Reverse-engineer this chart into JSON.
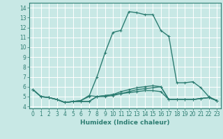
{
  "xlabel": "Humidex (Indice chaleur)",
  "xlim": [
    -0.5,
    23.5
  ],
  "ylim": [
    3.8,
    14.5
  ],
  "xticks": [
    0,
    1,
    2,
    3,
    4,
    5,
    6,
    7,
    8,
    9,
    10,
    11,
    12,
    13,
    14,
    15,
    16,
    17,
    18,
    19,
    20,
    21,
    22,
    23
  ],
  "yticks": [
    4,
    5,
    6,
    7,
    8,
    9,
    10,
    11,
    12,
    13,
    14
  ],
  "bg_color": "#c8e8e5",
  "line_color": "#2d7d72",
  "grid_color": "#ffffff",
  "lines": [
    {
      "x": [
        0,
        1,
        2,
        3,
        4,
        5,
        6,
        7,
        8,
        9,
        10,
        11,
        12,
        13,
        14,
        15,
        16,
        17,
        18,
        19,
        20,
        21,
        22,
        23
      ],
      "y": [
        5.7,
        5.0,
        4.9,
        4.7,
        4.4,
        4.5,
        4.6,
        5.0,
        7.0,
        9.4,
        11.5,
        11.7,
        13.6,
        13.5,
        13.3,
        13.3,
        11.7,
        11.1,
        6.4,
        6.4,
        6.5,
        5.9,
        5.0,
        4.6
      ]
    },
    {
      "x": [
        0,
        1,
        2,
        3,
        4,
        5,
        6,
        7,
        8,
        9,
        10,
        11,
        12,
        13,
        14,
        15,
        16,
        17,
        18,
        19,
        20,
        21,
        22,
        23
      ],
      "y": [
        5.7,
        5.0,
        4.9,
        4.7,
        4.4,
        4.5,
        4.5,
        4.5,
        5.0,
        5.1,
        5.2,
        5.5,
        5.7,
        5.9,
        6.0,
        6.1,
        6.0,
        4.7,
        4.7,
        4.7,
        4.7,
        4.8,
        4.9,
        4.6
      ]
    },
    {
      "x": [
        0,
        1,
        2,
        3,
        4,
        5,
        6,
        7,
        8,
        9,
        10,
        11,
        12,
        13,
        14,
        15,
        16,
        17,
        18,
        19,
        20,
        21,
        22,
        23
      ],
      "y": [
        5.7,
        5.0,
        4.9,
        4.7,
        4.4,
        4.5,
        4.5,
        4.5,
        5.0,
        5.1,
        5.2,
        5.3,
        5.4,
        5.5,
        5.6,
        5.6,
        5.5,
        4.7,
        4.7,
        4.7,
        4.7,
        4.8,
        4.9,
        4.6
      ]
    },
    {
      "x": [
        2,
        3,
        4,
        5,
        6,
        7,
        8,
        9,
        10,
        11,
        12,
        13,
        14,
        15,
        16,
        17,
        18,
        19,
        20,
        21,
        22,
        23
      ],
      "y": [
        4.9,
        4.7,
        4.4,
        4.5,
        4.6,
        5.1,
        5.0,
        5.0,
        5.1,
        5.3,
        5.5,
        5.7,
        5.8,
        5.9,
        6.0,
        4.7,
        4.7,
        4.7,
        4.7,
        4.8,
        4.9,
        4.6
      ]
    }
  ],
  "marker": "+",
  "markersize": 3,
  "linewidth": 1.0
}
